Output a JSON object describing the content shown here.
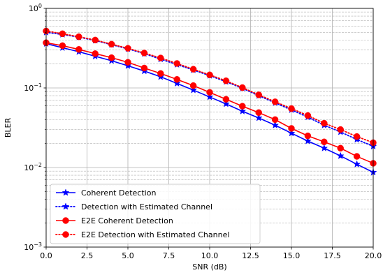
{
  "chart_data": {
    "type": "line",
    "title": "",
    "xlabel": "SNR (dB)",
    "ylabel": "BLER",
    "xlim": [
      0,
      20
    ],
    "ylim": [
      0.001,
      1
    ],
    "yscale": "log",
    "grid": true,
    "legend_location": "lower-left",
    "x_ticks": [
      "0.0",
      "2.5",
      "5.0",
      "7.5",
      "10.0",
      "12.5",
      "15.0",
      "17.5",
      "20.0"
    ],
    "y_ticks": [
      {
        "base": "10",
        "exp": "−3"
      },
      {
        "base": "10",
        "exp": "−2"
      },
      {
        "base": "10",
        "exp": "−1"
      },
      {
        "base": "10",
        "exp": "0"
      }
    ],
    "x": [
      0,
      1,
      2,
      3,
      4,
      5,
      6,
      7,
      8,
      9,
      10,
      11,
      12,
      13,
      14,
      15,
      16,
      17,
      18,
      19,
      20
    ],
    "series": [
      {
        "name": "Coherent Detection",
        "color": "#0000ff",
        "line_style": "solid",
        "marker": "star",
        "values": [
          0.36,
          0.32,
          0.285,
          0.25,
          0.22,
          0.19,
          0.163,
          0.138,
          0.114,
          0.094,
          0.077,
          0.063,
          0.051,
          0.042,
          0.034,
          0.027,
          0.0215,
          0.0175,
          0.014,
          0.011,
          0.0087
        ]
      },
      {
        "name": "Detection with Estimated Channel",
        "color": "#0000ff",
        "line_style": "dotted",
        "marker": "star",
        "values": [
          0.5,
          0.47,
          0.435,
          0.395,
          0.35,
          0.31,
          0.27,
          0.23,
          0.197,
          0.168,
          0.143,
          0.12,
          0.099,
          0.08,
          0.065,
          0.053,
          0.043,
          0.034,
          0.028,
          0.0225,
          0.0185
        ]
      },
      {
        "name": "E2E Coherent Detection",
        "color": "#ff0000",
        "line_style": "solid",
        "marker": "circle",
        "values": [
          0.37,
          0.34,
          0.305,
          0.27,
          0.24,
          0.21,
          0.178,
          0.152,
          0.128,
          0.107,
          0.088,
          0.072,
          0.059,
          0.049,
          0.04,
          0.031,
          0.025,
          0.021,
          0.0175,
          0.0138,
          0.0113
        ]
      },
      {
        "name": "E2E Detection with Estimated Channel",
        "color": "#ff0000",
        "line_style": "dotted",
        "marker": "circle",
        "values": [
          0.52,
          0.48,
          0.44,
          0.4,
          0.355,
          0.315,
          0.275,
          0.238,
          0.203,
          0.172,
          0.146,
          0.123,
          0.101,
          0.082,
          0.067,
          0.055,
          0.045,
          0.036,
          0.03,
          0.0245,
          0.0205
        ]
      }
    ]
  }
}
